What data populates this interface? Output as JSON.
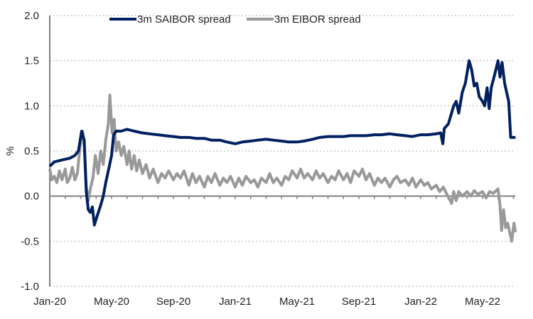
{
  "chart_data": {
    "type": "line",
    "title": "",
    "xlabel": "",
    "ylabel": "%",
    "ylim": [
      -1.0,
      2.0
    ],
    "yticks": [
      "2.0",
      "1.5",
      "1.0",
      "0.5",
      "0.0",
      "-0.5",
      "-1.0"
    ],
    "xlim": [
      "2020-01-01",
      "2022-07-05"
    ],
    "xticks": [
      {
        "label": "Jan-20",
        "date": "2020-01-01"
      },
      {
        "label": "May-20",
        "date": "2020-05-01"
      },
      {
        "label": "Sep-20",
        "date": "2020-09-01"
      },
      {
        "label": "Jan-21",
        "date": "2021-01-01"
      },
      {
        "label": "May-21",
        "date": "2021-05-01"
      },
      {
        "label": "Sep-21",
        "date": "2021-09-01"
      },
      {
        "label": "Jan-22",
        "date": "2022-01-01"
      },
      {
        "label": "May-22",
        "date": "2022-05-01"
      }
    ],
    "grid": "horizontal dotted",
    "legend_position": "top-center",
    "series": [
      {
        "name": "3m SAIBOR spread",
        "color": "#002060",
        "points": [
          [
            "2020-01-01",
            0.33
          ],
          [
            "2020-01-10",
            0.38
          ],
          [
            "2020-01-25",
            0.4
          ],
          [
            "2020-02-10",
            0.42
          ],
          [
            "2020-02-20",
            0.45
          ],
          [
            "2020-02-27",
            0.5
          ],
          [
            "2020-03-03",
            0.72
          ],
          [
            "2020-03-08",
            0.62
          ],
          [
            "2020-03-12",
            0.05
          ],
          [
            "2020-03-16",
            -0.15
          ],
          [
            "2020-03-20",
            -0.18
          ],
          [
            "2020-03-24",
            -0.12
          ],
          [
            "2020-03-28",
            -0.32
          ],
          [
            "2020-04-03",
            -0.22
          ],
          [
            "2020-04-10",
            -0.1
          ],
          [
            "2020-04-15",
            0.0
          ],
          [
            "2020-04-20",
            0.15
          ],
          [
            "2020-04-25",
            0.28
          ],
          [
            "2020-05-01",
            0.45
          ],
          [
            "2020-05-05",
            0.68
          ],
          [
            "2020-05-10",
            0.72
          ],
          [
            "2020-05-20",
            0.72
          ],
          [
            "2020-06-01",
            0.74
          ],
          [
            "2020-06-15",
            0.72
          ],
          [
            "2020-07-01",
            0.7
          ],
          [
            "2020-07-15",
            0.69
          ],
          [
            "2020-08-01",
            0.68
          ],
          [
            "2020-08-15",
            0.67
          ],
          [
            "2020-09-01",
            0.66
          ],
          [
            "2020-09-15",
            0.65
          ],
          [
            "2020-10-01",
            0.65
          ],
          [
            "2020-10-15",
            0.64
          ],
          [
            "2020-11-01",
            0.64
          ],
          [
            "2020-11-15",
            0.62
          ],
          [
            "2020-12-01",
            0.62
          ],
          [
            "2020-12-15",
            0.6
          ],
          [
            "2021-01-01",
            0.58
          ],
          [
            "2021-01-15",
            0.6
          ],
          [
            "2021-02-01",
            0.61
          ],
          [
            "2021-02-15",
            0.62
          ],
          [
            "2021-03-01",
            0.63
          ],
          [
            "2021-03-15",
            0.62
          ],
          [
            "2021-04-01",
            0.61
          ],
          [
            "2021-04-15",
            0.6
          ],
          [
            "2021-05-01",
            0.6
          ],
          [
            "2021-05-15",
            0.61
          ],
          [
            "2021-06-01",
            0.63
          ],
          [
            "2021-06-15",
            0.65
          ],
          [
            "2021-07-01",
            0.66
          ],
          [
            "2021-07-15",
            0.66
          ],
          [
            "2021-08-01",
            0.66
          ],
          [
            "2021-08-15",
            0.67
          ],
          [
            "2021-09-01",
            0.67
          ],
          [
            "2021-09-15",
            0.67
          ],
          [
            "2021-10-01",
            0.68
          ],
          [
            "2021-10-15",
            0.68
          ],
          [
            "2021-11-01",
            0.69
          ],
          [
            "2021-11-15",
            0.68
          ],
          [
            "2021-12-01",
            0.67
          ],
          [
            "2021-12-15",
            0.66
          ],
          [
            "2022-01-01",
            0.68
          ],
          [
            "2022-01-15",
            0.68
          ],
          [
            "2022-02-01",
            0.69
          ],
          [
            "2022-02-10",
            0.7
          ],
          [
            "2022-02-14",
            0.58
          ],
          [
            "2022-02-17",
            0.75
          ],
          [
            "2022-02-25",
            0.8
          ],
          [
            "2022-03-05",
            1.0
          ],
          [
            "2022-03-10",
            1.05
          ],
          [
            "2022-03-15",
            0.92
          ],
          [
            "2022-03-22",
            1.15
          ],
          [
            "2022-03-28",
            1.25
          ],
          [
            "2022-04-05",
            1.5
          ],
          [
            "2022-04-10",
            1.4
          ],
          [
            "2022-04-15",
            1.22
          ],
          [
            "2022-04-20",
            1.25
          ],
          [
            "2022-04-25",
            1.1
          ],
          [
            "2022-05-01",
            1.05
          ],
          [
            "2022-05-05",
            1.0
          ],
          [
            "2022-05-10",
            1.2
          ],
          [
            "2022-05-14",
            0.97
          ],
          [
            "2022-05-18",
            1.2
          ],
          [
            "2022-05-25",
            1.35
          ],
          [
            "2022-06-01",
            1.5
          ],
          [
            "2022-06-05",
            1.32
          ],
          [
            "2022-06-09",
            1.48
          ],
          [
            "2022-06-14",
            1.25
          ],
          [
            "2022-06-18",
            1.15
          ],
          [
            "2022-06-22",
            1.05
          ],
          [
            "2022-06-26",
            0.65
          ],
          [
            "2022-07-05",
            0.65
          ]
        ]
      },
      {
        "name": "3m EIBOR spread",
        "color": "#999999",
        "points": [
          [
            "2020-01-01",
            0.3
          ],
          [
            "2020-01-05",
            0.18
          ],
          [
            "2020-01-10",
            0.22
          ],
          [
            "2020-01-15",
            0.15
          ],
          [
            "2020-01-20",
            0.28
          ],
          [
            "2020-01-25",
            0.18
          ],
          [
            "2020-02-01",
            0.3
          ],
          [
            "2020-02-05",
            0.15
          ],
          [
            "2020-02-10",
            0.2
          ],
          [
            "2020-02-15",
            0.32
          ],
          [
            "2020-02-20",
            0.18
          ],
          [
            "2020-02-25",
            0.25
          ],
          [
            "2020-03-01",
            0.62
          ],
          [
            "2020-03-05",
            0.72
          ],
          [
            "2020-03-08",
            0.55
          ],
          [
            "2020-03-12",
            0.1
          ],
          [
            "2020-03-16",
            -0.05
          ],
          [
            "2020-03-20",
            0.08
          ],
          [
            "2020-03-25",
            0.2
          ],
          [
            "2020-03-30",
            0.45
          ],
          [
            "2020-04-05",
            0.25
          ],
          [
            "2020-04-10",
            0.5
          ],
          [
            "2020-04-15",
            0.35
          ],
          [
            "2020-04-20",
            0.62
          ],
          [
            "2020-04-25",
            0.8
          ],
          [
            "2020-04-28",
            1.12
          ],
          [
            "2020-05-02",
            0.7
          ],
          [
            "2020-05-06",
            0.85
          ],
          [
            "2020-05-10",
            0.5
          ],
          [
            "2020-05-15",
            0.6
          ],
          [
            "2020-05-20",
            0.45
          ],
          [
            "2020-05-25",
            0.55
          ],
          [
            "2020-06-01",
            0.35
          ],
          [
            "2020-06-05",
            0.5
          ],
          [
            "2020-06-10",
            0.3
          ],
          [
            "2020-06-15",
            0.45
          ],
          [
            "2020-06-20",
            0.28
          ],
          [
            "2020-06-25",
            0.4
          ],
          [
            "2020-07-01",
            0.25
          ],
          [
            "2020-07-08",
            0.35
          ],
          [
            "2020-07-15",
            0.2
          ],
          [
            "2020-07-22",
            0.3
          ],
          [
            "2020-08-01",
            0.15
          ],
          [
            "2020-08-08",
            0.25
          ],
          [
            "2020-08-15",
            0.2
          ],
          [
            "2020-08-22",
            0.28
          ],
          [
            "2020-09-01",
            0.18
          ],
          [
            "2020-09-08",
            0.25
          ],
          [
            "2020-09-15",
            0.2
          ],
          [
            "2020-09-22",
            0.28
          ],
          [
            "2020-10-01",
            0.12
          ],
          [
            "2020-10-08",
            0.25
          ],
          [
            "2020-10-15",
            0.15
          ],
          [
            "2020-10-22",
            0.22
          ],
          [
            "2020-11-01",
            0.1
          ],
          [
            "2020-11-08",
            0.22
          ],
          [
            "2020-11-15",
            0.15
          ],
          [
            "2020-11-22",
            0.25
          ],
          [
            "2020-12-01",
            0.12
          ],
          [
            "2020-12-08",
            0.2
          ],
          [
            "2020-12-15",
            0.15
          ],
          [
            "2020-12-22",
            0.22
          ],
          [
            "2021-01-01",
            0.1
          ],
          [
            "2021-01-08",
            0.2
          ],
          [
            "2021-01-15",
            0.12
          ],
          [
            "2021-01-22",
            0.22
          ],
          [
            "2021-02-01",
            0.15
          ],
          [
            "2021-02-08",
            0.18
          ],
          [
            "2021-02-15",
            0.1
          ],
          [
            "2021-02-22",
            0.2
          ],
          [
            "2021-03-01",
            0.15
          ],
          [
            "2021-03-08",
            0.25
          ],
          [
            "2021-03-15",
            0.15
          ],
          [
            "2021-03-22",
            0.2
          ],
          [
            "2021-04-01",
            0.12
          ],
          [
            "2021-04-08",
            0.22
          ],
          [
            "2021-04-15",
            0.18
          ],
          [
            "2021-04-22",
            0.28
          ],
          [
            "2021-05-01",
            0.2
          ],
          [
            "2021-05-08",
            0.3
          ],
          [
            "2021-05-15",
            0.2
          ],
          [
            "2021-05-22",
            0.25
          ],
          [
            "2021-06-01",
            0.18
          ],
          [
            "2021-06-08",
            0.28
          ],
          [
            "2021-06-15",
            0.2
          ],
          [
            "2021-06-22",
            0.25
          ],
          [
            "2021-07-01",
            0.15
          ],
          [
            "2021-07-08",
            0.22
          ],
          [
            "2021-07-15",
            0.18
          ],
          [
            "2021-07-22",
            0.28
          ],
          [
            "2021-08-01",
            0.18
          ],
          [
            "2021-08-08",
            0.25
          ],
          [
            "2021-08-15",
            0.15
          ],
          [
            "2021-08-22",
            0.28
          ],
          [
            "2021-09-01",
            0.22
          ],
          [
            "2021-09-08",
            0.3
          ],
          [
            "2021-09-15",
            0.18
          ],
          [
            "2021-09-22",
            0.25
          ],
          [
            "2021-10-01",
            0.12
          ],
          [
            "2021-10-08",
            0.2
          ],
          [
            "2021-10-15",
            0.15
          ],
          [
            "2021-10-22",
            0.2
          ],
          [
            "2021-11-01",
            0.1
          ],
          [
            "2021-11-08",
            0.18
          ],
          [
            "2021-11-15",
            0.22
          ],
          [
            "2021-11-22",
            0.15
          ],
          [
            "2021-12-01",
            0.18
          ],
          [
            "2021-12-08",
            0.12
          ],
          [
            "2021-12-15",
            0.2
          ],
          [
            "2021-12-22",
            0.1
          ],
          [
            "2022-01-01",
            0.18
          ],
          [
            "2022-01-08",
            0.12
          ],
          [
            "2022-01-15",
            0.15
          ],
          [
            "2022-01-22",
            0.08
          ],
          [
            "2022-02-01",
            0.12
          ],
          [
            "2022-02-08",
            0.05
          ],
          [
            "2022-02-15",
            0.1
          ],
          [
            "2022-02-22",
            0.02
          ],
          [
            "2022-03-01",
            -0.08
          ],
          [
            "2022-03-05",
            0.05
          ],
          [
            "2022-03-10",
            -0.05
          ],
          [
            "2022-03-15",
            0.05
          ],
          [
            "2022-03-22",
            0.0
          ],
          [
            "2022-04-01",
            0.05
          ],
          [
            "2022-04-08",
            0.0
          ],
          [
            "2022-04-15",
            0.06
          ],
          [
            "2022-04-22",
            0.02
          ],
          [
            "2022-05-01",
            0.05
          ],
          [
            "2022-05-08",
            -0.02
          ],
          [
            "2022-05-15",
            0.05
          ],
          [
            "2022-05-22",
            0.03
          ],
          [
            "2022-06-01",
            0.08
          ],
          [
            "2022-06-05",
            -0.1
          ],
          [
            "2022-06-08",
            -0.38
          ],
          [
            "2022-06-12",
            -0.15
          ],
          [
            "2022-06-16",
            -0.35
          ],
          [
            "2022-06-20",
            -0.3
          ],
          [
            "2022-06-24",
            -0.4
          ],
          [
            "2022-06-28",
            -0.5
          ],
          [
            "2022-07-02",
            -0.3
          ],
          [
            "2022-07-05",
            -0.4
          ]
        ]
      }
    ]
  }
}
